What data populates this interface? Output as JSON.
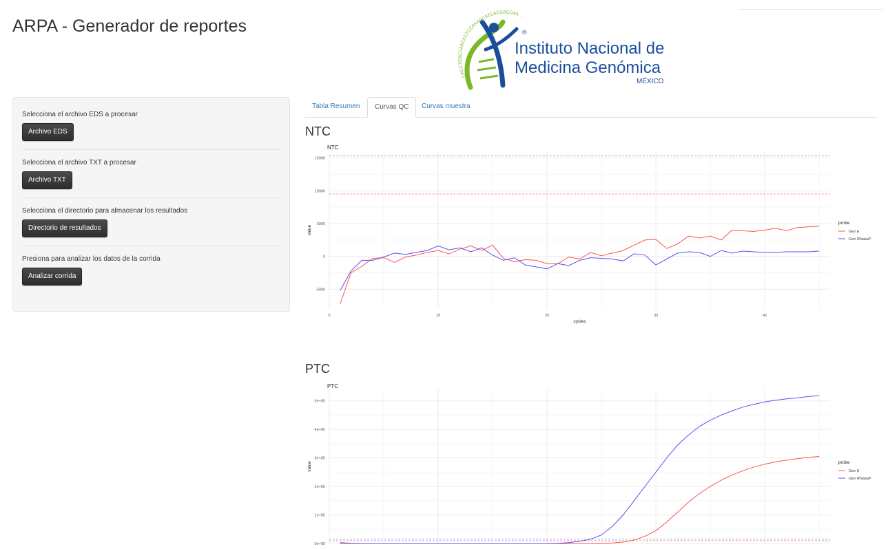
{
  "app": {
    "title": "ARPA - Generador de reportes"
  },
  "logo": {
    "line1": "Instituto Nacional de",
    "line2": "Medicina Genómica",
    "country": "MÉXICO",
    "dna_text": "CACCTCACCAACACTCCAAAGCATCACCACCAA",
    "reg": "®",
    "colors": {
      "blue": "#1a4e9c",
      "green": "#79b928"
    }
  },
  "sidebar": {
    "sections": [
      {
        "label": "Selecciona el archivo EDS a procesar",
        "button": "Archivo EDS"
      },
      {
        "label": "Selecciona el archivo TXT a procesar",
        "button": "Archivo TXT"
      },
      {
        "label": "Selecciona el directorio para almacenar los resultados",
        "button": "Directorio de resultados"
      },
      {
        "label": "Presiona para analizar los datos de la corrida",
        "button": "Analizar corrida"
      }
    ]
  },
  "tabs": [
    {
      "label": "Tabla Resumen",
      "active": false
    },
    {
      "label": "Curvas QC",
      "active": true
    },
    {
      "label": "Curvas muestra",
      "active": false
    }
  ],
  "sections": {
    "ntc": "NTC",
    "ptc": "PTC"
  },
  "chart_data": [
    {
      "type": "line",
      "title": "NTC",
      "xlabel": "cycles",
      "ylabel": "value",
      "xlim": [
        0,
        46
      ],
      "ylim": [
        -8000,
        16000
      ],
      "x_ticks": [
        0,
        10,
        20,
        30,
        40
      ],
      "y_ticks": [
        -5000,
        0,
        5000,
        10000,
        15000
      ],
      "y_tick_labels": [
        "-5000",
        "0",
        "5000",
        "10000",
        "15000"
      ],
      "thresholds": [
        {
          "value": 15300,
          "color": "#aaaaee"
        },
        {
          "value": 9500,
          "color": "#ee9999"
        }
      ],
      "legend_title": "probe",
      "legend_position": "right",
      "grid": true,
      "x": [
        1,
        2,
        3,
        4,
        5,
        6,
        7,
        8,
        9,
        10,
        11,
        12,
        13,
        14,
        15,
        16,
        17,
        18,
        19,
        20,
        21,
        22,
        23,
        24,
        25,
        26,
        27,
        28,
        29,
        30,
        31,
        32,
        33,
        34,
        35,
        36,
        37,
        38,
        39,
        40,
        41,
        42,
        43,
        44,
        45
      ],
      "series": [
        {
          "name": "Gen E",
          "color": "#f8524b",
          "values": [
            -7200,
            -2500,
            -1500,
            -300,
            -200,
            -900,
            -100,
            200,
            600,
            900,
            400,
            1100,
            1600,
            900,
            1700,
            -300,
            -800,
            -500,
            -600,
            -1100,
            -1100,
            -100,
            -400,
            600,
            100,
            500,
            900,
            1700,
            2500,
            2600,
            1200,
            1900,
            3100,
            2800,
            3100,
            2500,
            4000,
            3900,
            3800,
            4000,
            4300,
            3900,
            4400,
            4500,
            4600
          ]
        },
        {
          "name": "Gen RNasaP",
          "color": "#5a4cf5",
          "values": [
            -5200,
            -2200,
            -600,
            -600,
            -100,
            500,
            300,
            600,
            900,
            1600,
            1000,
            1300,
            700,
            1300,
            200,
            -600,
            -200,
            -1300,
            -1600,
            -1900,
            -1100,
            -1400,
            -600,
            -200,
            -300,
            -400,
            -700,
            400,
            200,
            -1300,
            -400,
            500,
            700,
            600,
            0,
            900,
            500,
            800,
            700,
            600,
            600,
            700,
            700,
            700,
            800
          ]
        }
      ]
    },
    {
      "type": "line",
      "title": "PTC",
      "xlabel": "",
      "ylabel": "value",
      "xlim": [
        0,
        46
      ],
      "ylim": [
        0,
        540000
      ],
      "y_ticks": [
        0,
        100000,
        200000,
        300000,
        400000,
        500000
      ],
      "y_tick_labels": [
        "0e+00",
        "1e+05",
        "2e+05",
        "3e+05",
        "4e+05",
        "5e+05"
      ],
      "thresholds": [
        {
          "value": 15300,
          "color": "#aaaaee"
        },
        {
          "value": 9500,
          "color": "#ee9999"
        }
      ],
      "legend_title": "probe",
      "legend_position": "right",
      "grid": true,
      "x": [
        1,
        2,
        3,
        4,
        5,
        6,
        7,
        8,
        9,
        10,
        11,
        12,
        13,
        14,
        15,
        16,
        17,
        18,
        19,
        20,
        21,
        22,
        23,
        24,
        25,
        26,
        27,
        28,
        29,
        30,
        31,
        32,
        33,
        34,
        35,
        36,
        37,
        38,
        39,
        40,
        41,
        42,
        43,
        44,
        45
      ],
      "series": [
        {
          "name": "Gen E",
          "color": "#f8524b",
          "values": [
            0,
            0,
            0,
            0,
            0,
            0,
            0,
            0,
            0,
            0,
            0,
            0,
            0,
            0,
            0,
            0,
            0,
            0,
            0,
            0,
            0,
            0,
            0,
            0,
            1000,
            2000,
            5000,
            12000,
            25000,
            45000,
            75000,
            110000,
            145000,
            175000,
            200000,
            222000,
            240000,
            255000,
            268000,
            278000,
            286000,
            292000,
            297000,
            302000,
            305000
          ]
        },
        {
          "name": "Gen RNasaP",
          "color": "#5a4cf5",
          "values": [
            3000,
            1000,
            0,
            0,
            0,
            0,
            0,
            0,
            0,
            0,
            0,
            0,
            0,
            0,
            0,
            0,
            0,
            0,
            0,
            0,
            1000,
            3000,
            8000,
            15000,
            30000,
            60000,
            100000,
            150000,
            200000,
            250000,
            300000,
            345000,
            380000,
            410000,
            432000,
            450000,
            465000,
            478000,
            488000,
            496000,
            502000,
            507000,
            510000,
            515000,
            518000
          ]
        }
      ]
    }
  ]
}
